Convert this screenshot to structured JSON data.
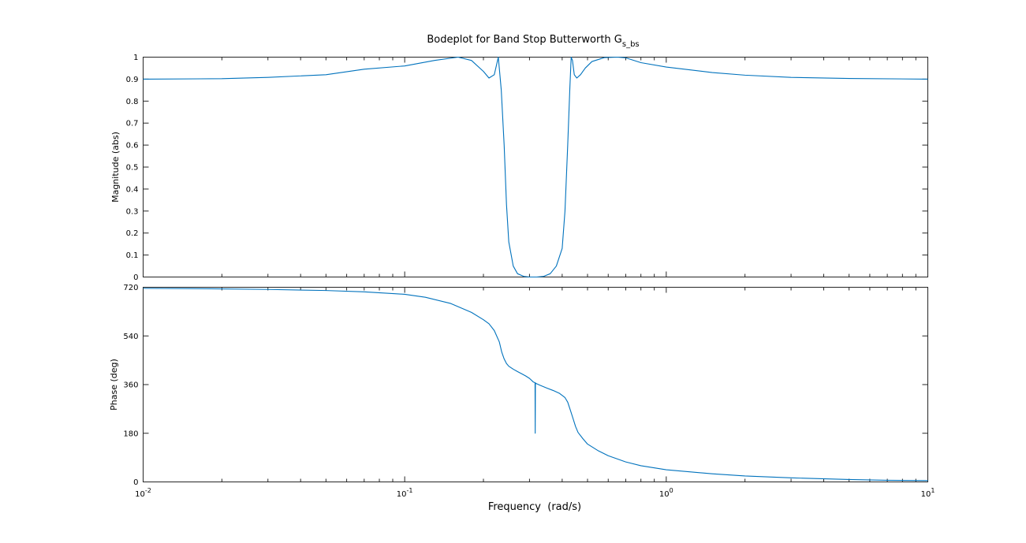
{
  "chart_data": [
    {
      "type": "line",
      "title": "Bodeplot for Band Stop Butterworth G",
      "title_subscript": "s_bs",
      "xlabel": "",
      "ylabel": "Magnitude (abs)",
      "xscale": "log",
      "xlim": [
        0.01,
        10
      ],
      "ylim": [
        0,
        1
      ],
      "yticks": [
        "0",
        "0.1",
        "0.2",
        "0.3",
        "0.4",
        "0.5",
        "0.6",
        "0.7",
        "0.8",
        "0.9",
        "1"
      ],
      "grid": false,
      "series": [
        {
          "color": "#0072bd",
          "x": [
            0.01,
            0.02,
            0.03,
            0.05,
            0.07,
            0.1,
            0.13,
            0.16,
            0.18,
            0.2,
            0.21,
            0.22,
            0.228,
            0.234,
            0.24,
            0.245,
            0.25,
            0.26,
            0.27,
            0.285,
            0.3,
            0.32,
            0.34,
            0.36,
            0.38,
            0.4,
            0.41,
            0.42,
            0.428,
            0.433,
            0.438,
            0.445,
            0.455,
            0.47,
            0.49,
            0.52,
            0.58,
            0.65,
            0.7,
            0.8,
            1.0,
            1.5,
            2,
            3,
            5,
            10
          ],
          "y": [
            0.9,
            0.902,
            0.908,
            0.92,
            0.945,
            0.96,
            0.985,
            1.0,
            0.985,
            0.935,
            0.905,
            0.92,
            1.0,
            0.85,
            0.6,
            0.33,
            0.16,
            0.05,
            0.015,
            0.003,
            0.0,
            0.0,
            0.003,
            0.015,
            0.05,
            0.13,
            0.3,
            0.6,
            0.86,
            1.0,
            0.985,
            0.92,
            0.905,
            0.92,
            0.95,
            0.98,
            0.998,
            1.0,
            0.997,
            0.975,
            0.955,
            0.93,
            0.918,
            0.908,
            0.903,
            0.9
          ]
        }
      ]
    },
    {
      "type": "line",
      "title": "",
      "xlabel": "Frequency  (rad/s)",
      "ylabel": "Phase (deg)",
      "xscale": "log",
      "xlim": [
        0.01,
        10
      ],
      "ylim": [
        0,
        720
      ],
      "yticks": [
        "0",
        "180",
        "360",
        "540",
        "720"
      ],
      "xticks": [
        {
          "base": "10",
          "exp": "-2"
        },
        {
          "base": "10",
          "exp": "-1"
        },
        {
          "base": "10",
          "exp": "0"
        },
        {
          "base": "10",
          "exp": "1"
        }
      ],
      "grid": false,
      "series": [
        {
          "color": "#0072bd",
          "x": [
            0.01,
            0.015,
            0.02,
            0.03,
            0.05,
            0.07,
            0.1,
            0.12,
            0.15,
            0.18,
            0.2,
            0.21,
            0.22,
            0.23,
            0.235,
            0.24,
            0.245,
            0.25,
            0.26,
            0.27,
            0.28,
            0.29,
            0.3,
            0.31,
            0.315,
            0.3155,
            0.316,
            0.3165,
            0.317,
            0.32,
            0.33,
            0.35,
            0.37,
            0.39,
            0.41,
            0.42,
            0.43,
            0.44,
            0.45,
            0.46,
            0.48,
            0.5,
            0.55,
            0.6,
            0.7,
            0.8,
            1.0,
            1.5,
            2,
            3,
            5,
            7,
            10
          ],
          "y": [
            716,
            715,
            714,
            712,
            708,
            703,
            694,
            683,
            660,
            627,
            600,
            585,
            560,
            518,
            480,
            455,
            438,
            428,
            417,
            408,
            400,
            392,
            383,
            370,
            367,
            180,
            359,
            366,
            365,
            363,
            357,
            347,
            338,
            328,
            312,
            295,
            265,
            235,
            205,
            183,
            160,
            140,
            115,
            97,
            74,
            60,
            45,
            30,
            22,
            15,
            9,
            6,
            5
          ]
        }
      ]
    }
  ]
}
